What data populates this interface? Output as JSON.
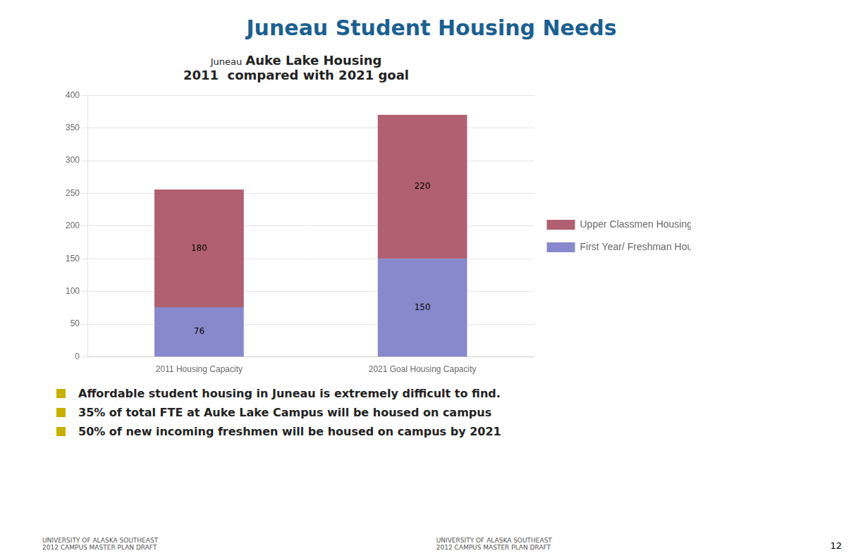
{
  "chart_data": {
    "type": "bar",
    "title": "Juneau Student Housing Needs",
    "subtitle": [
      "Juneau",
      "Auke Lake Housing",
      "2011  compared with 2021 goal"
    ],
    "categories": [
      "2011 Housing Capacity",
      "2021 Goal Housing Capacity"
    ],
    "series": [
      {
        "name": "First Year/ Freshman Housing",
        "color": "#8888cc",
        "values": [
          76,
          150
        ]
      },
      {
        "name": "Upper Classmen Housing",
        "color": "#b06070",
        "values": [
          180,
          220
        ]
      }
    ],
    "stacked": true,
    "data_labels": true,
    "ylim": [
      0,
      400
    ],
    "yticks": [
      0,
      50,
      100,
      150,
      200,
      250,
      300,
      350,
      400
    ],
    "grid": true,
    "legend": "right",
    "annotations": [
      {
        "text": "Affordable student housing in Juneau is extremely difficult to find.",
        "color": "#c8b000"
      },
      {
        "text": "35% of total FTE at  Auke Lake Campus will be housed on campus",
        "color": "#c8b000"
      },
      {
        "text": "50% of new incoming freshmen will be housed on campus by 2021",
        "color": "#c8b000"
      },
      {
        "text": "UNIVERSITY OF ALASKA SOUTHEAST\n2012 CAMPUS MASTER PLAN DRAFT"
      },
      {
        "text": "UNIVERSITY OF ALASKA SOUTHEAST\n2012 CAMPUS MASTER PLAN DRAFT"
      },
      {
        "text": "12"
      }
    ]
  }
}
